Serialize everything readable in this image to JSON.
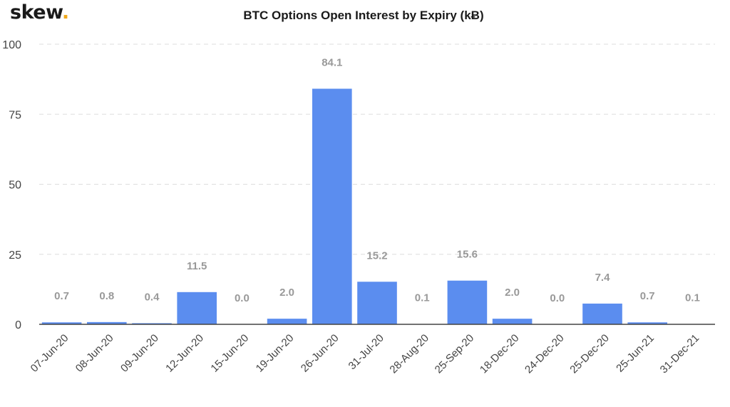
{
  "brand": {
    "name": "skew",
    "dot": ".",
    "dot_color": "#f0a81c"
  },
  "chart_data": {
    "type": "bar",
    "title": "BTC Options Open Interest by Expiry (kɃ)",
    "xlabel": "",
    "ylabel": "",
    "categories": [
      "07-Jun-20",
      "08-Jun-20",
      "09-Jun-20",
      "12-Jun-20",
      "15-Jun-20",
      "19-Jun-20",
      "26-Jun-20",
      "31-Jul-20",
      "28-Aug-20",
      "25-Sep-20",
      "18-Dec-20",
      "24-Dec-20",
      "25-Dec-20",
      "25-Jun-21",
      "31-Dec-21"
    ],
    "values": [
      0.7,
      0.8,
      0.4,
      11.5,
      0.0,
      2.0,
      84.1,
      15.2,
      0.1,
      15.6,
      2.0,
      0.0,
      7.4,
      0.7,
      0.1
    ],
    "value_labels": [
      "0.7",
      "0.8",
      "0.4",
      "11.5",
      "0.0",
      "2.0",
      "84.1",
      "15.2",
      "0.1",
      "15.6",
      "2.0",
      "0.0",
      "7.4",
      "0.7",
      "0.1"
    ],
    "ylim": [
      0,
      100
    ],
    "yticks": [
      "0",
      "25",
      "50",
      "75",
      "100"
    ],
    "grid": true,
    "legend": "none",
    "colors": {
      "bar": "#5b8def",
      "label": "#999999",
      "axis": "#444444",
      "grid": "#dddddd"
    }
  }
}
